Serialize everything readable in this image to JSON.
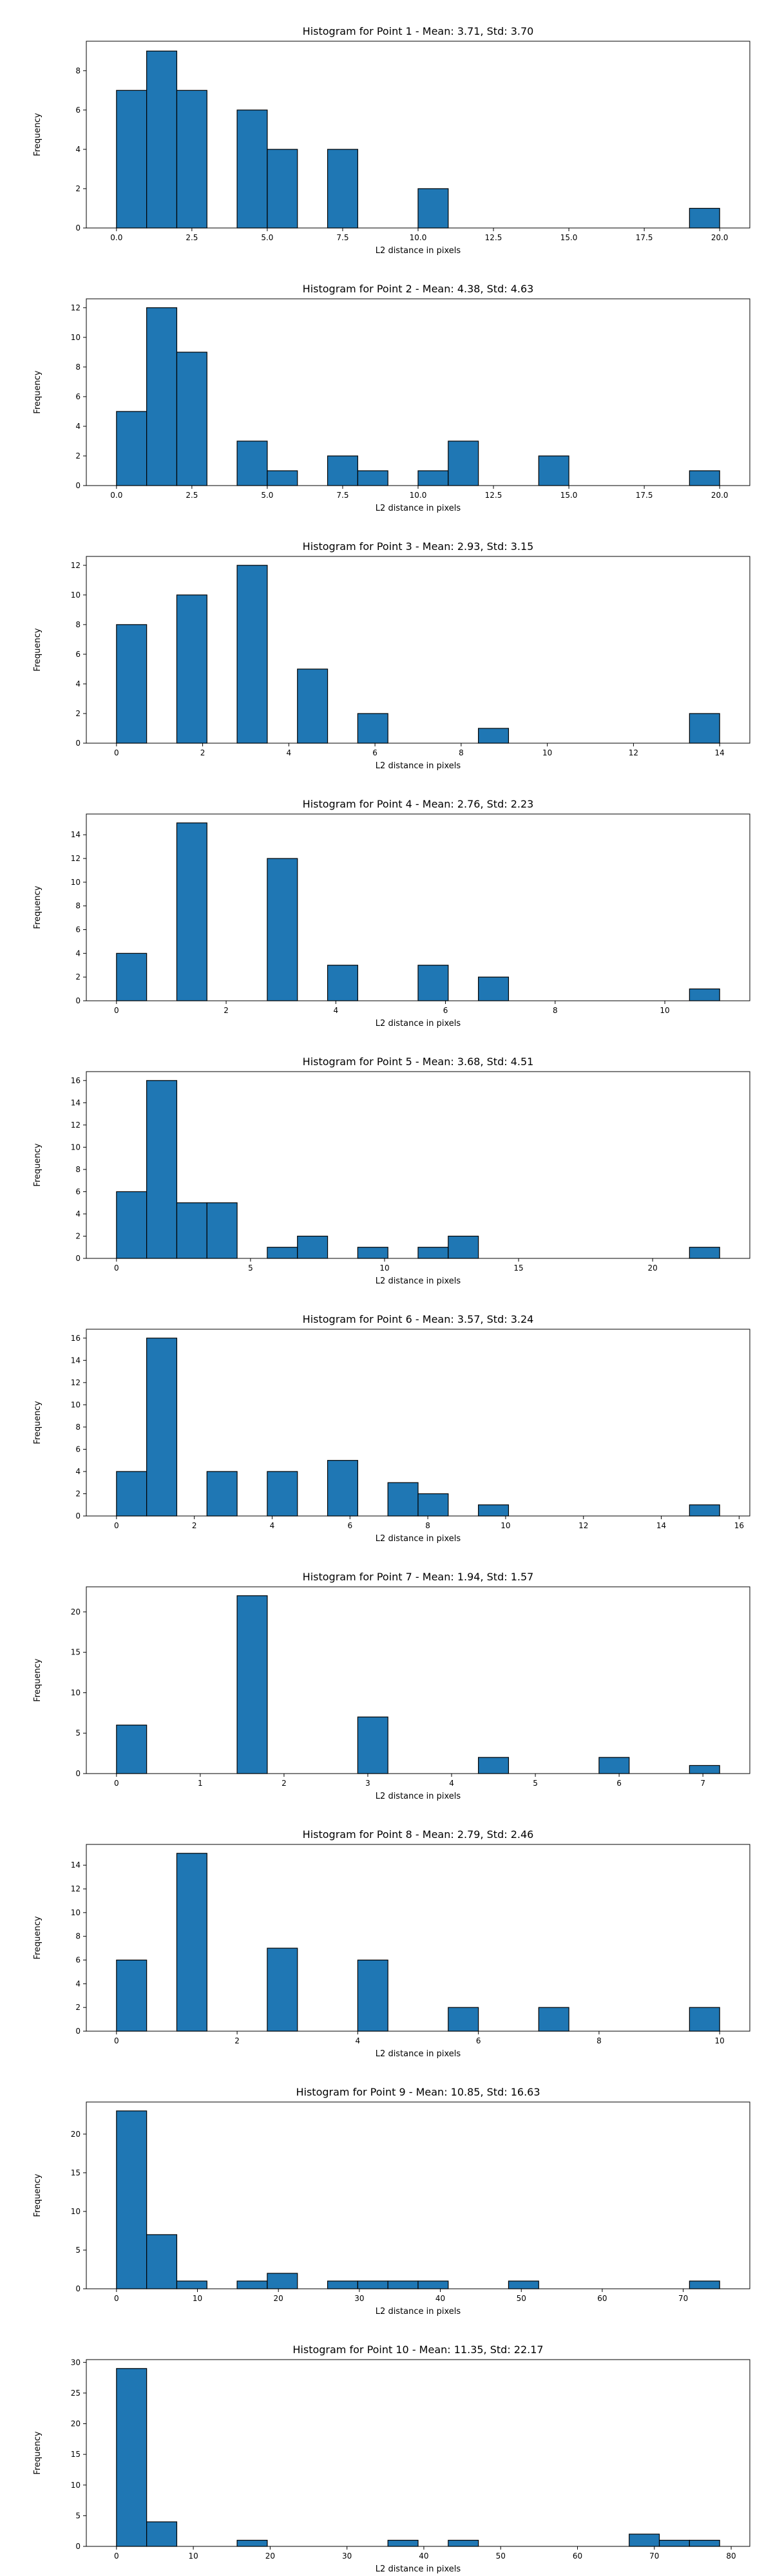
{
  "colors": {
    "bar_fill": "#1f77b4",
    "bar_edge": "#000000",
    "axes": "#000000",
    "background": "#ffffff"
  },
  "chart_data": [
    {
      "type": "bar",
      "title": "Histogram for Point 1 - Mean: 3.71, Std: 3.70",
      "xlabel": "L2 distance in pixels",
      "ylabel": "Frequency",
      "xlim": [
        -1,
        21
      ],
      "ylim": [
        0,
        9.5
      ],
      "x_ticks": [
        0,
        2.5,
        5,
        7.5,
        10,
        12.5,
        15,
        17.5,
        20
      ],
      "x_tick_labels": [
        "0.0",
        "2.5",
        "5.0",
        "7.5",
        "10.0",
        "12.5",
        "15.0",
        "17.5",
        "20.0"
      ],
      "y_ticks": [
        0,
        2,
        4,
        6,
        8
      ],
      "bin_edges": [
        0,
        1,
        2,
        3,
        4,
        5,
        6,
        7,
        8,
        9,
        10,
        11,
        12,
        13,
        14,
        15,
        16,
        17,
        18,
        19,
        20
      ],
      "counts": [
        7,
        9,
        7,
        0,
        6,
        4,
        0,
        4,
        0,
        0,
        2,
        0,
        0,
        0,
        0,
        0,
        0,
        0,
        0,
        1
      ]
    },
    {
      "type": "bar",
      "title": "Histogram for Point 2 - Mean: 4.38, Std: 4.63",
      "xlabel": "L2 distance in pixels",
      "ylabel": "Frequency",
      "xlim": [
        -1,
        21
      ],
      "ylim": [
        0,
        12.6
      ],
      "x_ticks": [
        0,
        2.5,
        5,
        7.5,
        10,
        12.5,
        15,
        17.5,
        20
      ],
      "x_tick_labels": [
        "0.0",
        "2.5",
        "5.0",
        "7.5",
        "10.0",
        "12.5",
        "15.0",
        "17.5",
        "20.0"
      ],
      "y_ticks": [
        0,
        2,
        4,
        6,
        8,
        10,
        12
      ],
      "bin_edges": [
        0,
        1,
        2,
        3,
        4,
        5,
        6,
        7,
        8,
        9,
        10,
        11,
        12,
        13,
        14,
        15,
        16,
        17,
        18,
        19,
        20
      ],
      "counts": [
        5,
        12,
        9,
        0,
        3,
        1,
        0,
        2,
        1,
        0,
        1,
        3,
        0,
        0,
        2,
        0,
        0,
        0,
        0,
        1
      ]
    },
    {
      "type": "bar",
      "title": "Histogram for Point 3 - Mean: 2.93, Std: 3.15",
      "xlabel": "L2 distance in pixels",
      "ylabel": "Frequency",
      "xlim": [
        -0.7,
        14.7
      ],
      "ylim": [
        0,
        12.6
      ],
      "x_ticks": [
        0,
        2,
        4,
        6,
        8,
        10,
        12,
        14
      ],
      "x_tick_labels": [
        "0",
        "2",
        "4",
        "6",
        "8",
        "10",
        "12",
        "14"
      ],
      "y_ticks": [
        0,
        2,
        4,
        6,
        8,
        10,
        12
      ],
      "bin_edges": [
        0,
        0.7,
        1.4,
        2.1,
        2.8,
        3.5,
        4.2,
        4.9,
        5.6,
        6.3,
        7.0,
        7.7,
        8.4,
        9.1,
        9.8,
        10.5,
        11.2,
        11.9,
        12.6,
        13.3,
        14.0
      ],
      "counts": [
        8,
        0,
        10,
        0,
        12,
        0,
        5,
        0,
        2,
        0,
        0,
        0,
        1,
        0,
        0,
        0,
        0,
        0,
        0,
        2
      ]
    },
    {
      "type": "bar",
      "title": "Histogram for Point 4 - Mean: 2.76, Std: 2.23",
      "xlabel": "L2 distance in pixels",
      "ylabel": "Frequency",
      "xlim": [
        -0.55,
        11.55
      ],
      "ylim": [
        0,
        15.75
      ],
      "x_ticks": [
        0,
        2,
        4,
        6,
        8,
        10
      ],
      "x_tick_labels": [
        "0",
        "2",
        "4",
        "6",
        "8",
        "10"
      ],
      "y_ticks": [
        0,
        2,
        4,
        6,
        8,
        10,
        12,
        14
      ],
      "bin_edges": [
        0,
        0.55,
        1.1,
        1.65,
        2.2,
        2.75,
        3.3,
        3.85,
        4.4,
        4.95,
        5.5,
        6.05,
        6.6,
        7.15,
        7.7,
        8.25,
        8.8,
        9.35,
        9.9,
        10.45,
        11.0
      ],
      "counts": [
        4,
        0,
        15,
        0,
        0,
        12,
        0,
        3,
        0,
        0,
        3,
        0,
        2,
        0,
        0,
        0,
        0,
        0,
        0,
        1
      ]
    },
    {
      "type": "bar",
      "title": "Histogram for Point 5 - Mean: 3.68, Std: 4.51",
      "xlabel": "L2 distance in pixels",
      "ylabel": "Frequency",
      "xlim": [
        -1.125,
        23.625
      ],
      "ylim": [
        0,
        16.8
      ],
      "x_ticks": [
        0,
        5,
        10,
        15,
        20
      ],
      "x_tick_labels": [
        "0",
        "5",
        "10",
        "15",
        "20"
      ],
      "y_ticks": [
        0,
        2,
        4,
        6,
        8,
        10,
        12,
        14,
        16
      ],
      "bin_edges": [
        0,
        1.125,
        2.25,
        3.375,
        4.5,
        5.625,
        6.75,
        7.875,
        9.0,
        10.125,
        11.25,
        12.375,
        13.5,
        14.625,
        15.75,
        16.875,
        18.0,
        19.125,
        20.25,
        21.375,
        22.5
      ],
      "counts": [
        6,
        16,
        5,
        5,
        0,
        1,
        2,
        0,
        1,
        0,
        1,
        2,
        0,
        0,
        0,
        0,
        0,
        0,
        0,
        1
      ]
    },
    {
      "type": "bar",
      "title": "Histogram for Point 6 - Mean: 3.57, Std: 3.24",
      "xlabel": "L2 distance in pixels",
      "ylabel": "Frequency",
      "xlim": [
        -0.775,
        16.275
      ],
      "ylim": [
        0,
        16.8
      ],
      "x_ticks": [
        0,
        2,
        4,
        6,
        8,
        10,
        12,
        14,
        16
      ],
      "x_tick_labels": [
        "0",
        "2",
        "4",
        "6",
        "8",
        "10",
        "12",
        "14",
        "16"
      ],
      "y_ticks": [
        0,
        2,
        4,
        6,
        8,
        10,
        12,
        14,
        16
      ],
      "bin_edges": [
        0,
        0.775,
        1.55,
        2.325,
        3.1,
        3.875,
        4.65,
        5.425,
        6.2,
        6.975,
        7.75,
        8.525,
        9.3,
        10.075,
        10.85,
        11.625,
        12.4,
        13.175,
        13.95,
        14.725,
        15.5
      ],
      "counts": [
        4,
        16,
        0,
        4,
        0,
        4,
        0,
        5,
        0,
        3,
        2,
        0,
        1,
        0,
        0,
        0,
        0,
        0,
        0,
        1
      ]
    },
    {
      "type": "bar",
      "title": "Histogram for Point 7 - Mean: 1.94, Std: 1.57",
      "xlabel": "L2 distance in pixels",
      "ylabel": "Frequency",
      "xlim": [
        -0.36,
        7.56
      ],
      "ylim": [
        0,
        23.1
      ],
      "x_ticks": [
        0,
        1,
        2,
        3,
        4,
        5,
        6,
        7
      ],
      "x_tick_labels": [
        "0",
        "1",
        "2",
        "3",
        "4",
        "5",
        "6",
        "7"
      ],
      "y_ticks": [
        0,
        5,
        10,
        15,
        20
      ],
      "bin_edges": [
        0,
        0.36,
        0.72,
        1.08,
        1.44,
        1.8,
        2.16,
        2.52,
        2.88,
        3.24,
        3.6,
        3.96,
        4.32,
        4.68,
        5.04,
        5.4,
        5.76,
        6.12,
        6.48,
        6.84,
        7.2
      ],
      "counts": [
        6,
        0,
        0,
        0,
        22,
        0,
        0,
        0,
        7,
        0,
        0,
        0,
        2,
        0,
        0,
        0,
        2,
        0,
        0,
        1
      ]
    },
    {
      "type": "bar",
      "title": "Histogram for Point 8 - Mean: 2.79, Std: 2.46",
      "xlabel": "L2 distance in pixels",
      "ylabel": "Frequency",
      "xlim": [
        -0.5,
        10.5
      ],
      "ylim": [
        0,
        15.75
      ],
      "x_ticks": [
        0,
        2,
        4,
        6,
        8,
        10
      ],
      "x_tick_labels": [
        "0",
        "2",
        "4",
        "6",
        "8",
        "10"
      ],
      "y_ticks": [
        0,
        2,
        4,
        6,
        8,
        10,
        12,
        14
      ],
      "bin_edges": [
        0,
        0.5,
        1.0,
        1.5,
        2.0,
        2.5,
        3.0,
        3.5,
        4.0,
        4.5,
        5.0,
        5.5,
        6.0,
        6.5,
        7.0,
        7.5,
        8.0,
        8.5,
        9.0,
        9.5,
        10.0
      ],
      "counts": [
        6,
        0,
        15,
        0,
        0,
        7,
        0,
        0,
        6,
        0,
        0,
        2,
        0,
        0,
        2,
        0,
        0,
        0,
        0,
        2
      ]
    },
    {
      "type": "bar",
      "title": "Histogram for Point 9 - Mean: 10.85, Std: 16.63",
      "xlabel": "L2 distance in pixels",
      "ylabel": "Frequency",
      "xlim": [
        -3.725,
        78.225
      ],
      "ylim": [
        0,
        24.15
      ],
      "x_ticks": [
        0,
        10,
        20,
        30,
        40,
        50,
        60,
        70
      ],
      "x_tick_labels": [
        "0",
        "10",
        "20",
        "30",
        "40",
        "50",
        "60",
        "70"
      ],
      "y_ticks": [
        0,
        5,
        10,
        15,
        20
      ],
      "bin_edges": [
        0,
        3.725,
        7.45,
        11.175,
        14.9,
        18.625,
        22.35,
        26.075,
        29.8,
        33.525,
        37.25,
        40.975,
        44.7,
        48.425,
        52.15,
        55.875,
        59.6,
        63.325,
        67.05,
        70.775,
        74.5
      ],
      "counts": [
        23,
        7,
        1,
        0,
        1,
        2,
        0,
        1,
        1,
        1,
        1,
        0,
        0,
        1,
        0,
        0,
        0,
        0,
        0,
        1
      ]
    },
    {
      "type": "bar",
      "title": "Histogram for Point 10 - Mean: 11.35, Std: 22.17",
      "xlabel": "L2 distance in pixels",
      "ylabel": "Frequency",
      "xlim": [
        -3.925,
        82.425
      ],
      "ylim": [
        0,
        30.45
      ],
      "x_ticks": [
        0,
        10,
        20,
        30,
        40,
        50,
        60,
        70,
        80
      ],
      "x_tick_labels": [
        "0",
        "10",
        "20",
        "30",
        "40",
        "50",
        "60",
        "70",
        "80"
      ],
      "y_ticks": [
        0,
        5,
        10,
        15,
        20,
        25,
        30
      ],
      "bin_edges": [
        0,
        3.925,
        7.85,
        11.775,
        15.7,
        19.625,
        23.55,
        27.475,
        31.4,
        35.325,
        39.25,
        43.175,
        47.1,
        51.025,
        54.95,
        58.875,
        62.8,
        66.725,
        70.65,
        74.575,
        78.5
      ],
      "counts": [
        29,
        4,
        0,
        0,
        1,
        0,
        0,
        0,
        0,
        1,
        0,
        1,
        0,
        0,
        0,
        0,
        0,
        2,
        1,
        1
      ]
    }
  ]
}
